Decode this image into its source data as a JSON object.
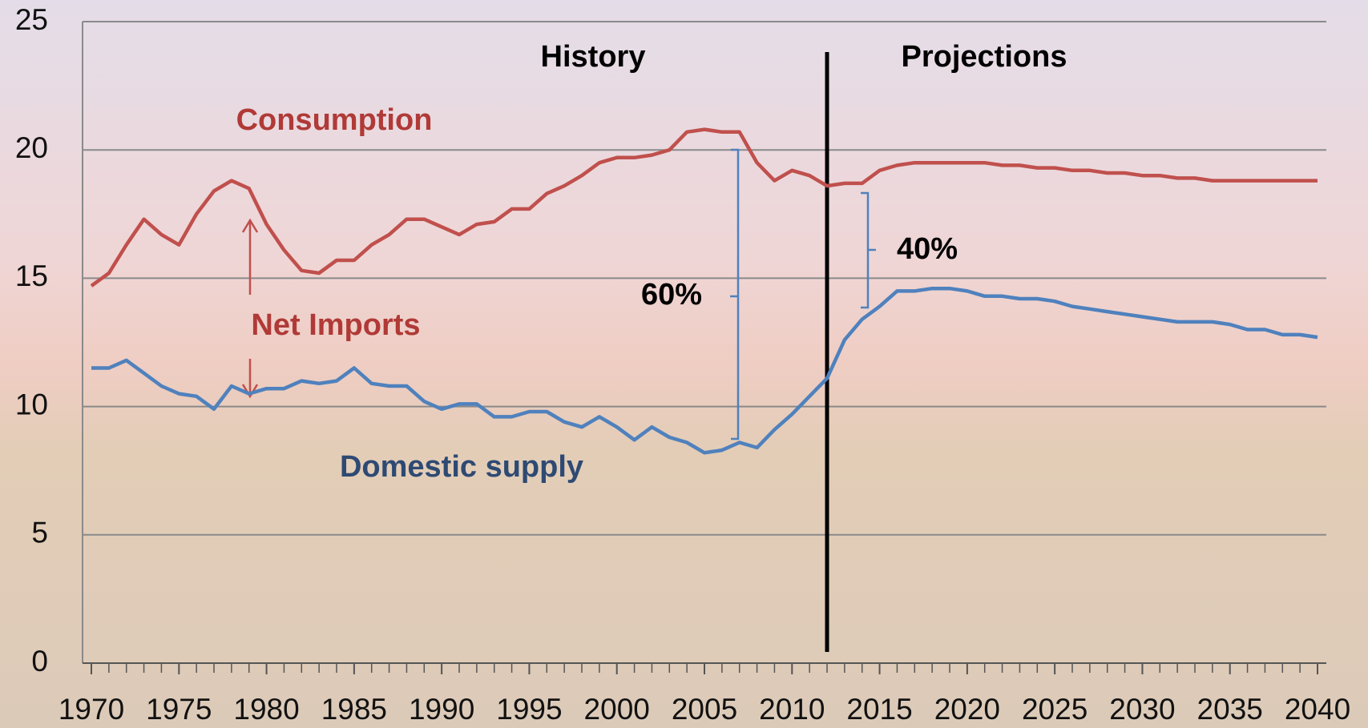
{
  "chart_data": {
    "type": "line",
    "x": [
      1970,
      1971,
      1972,
      1973,
      1974,
      1975,
      1976,
      1977,
      1978,
      1979,
      1980,
      1981,
      1982,
      1983,
      1984,
      1985,
      1986,
      1987,
      1988,
      1989,
      1990,
      1991,
      1992,
      1993,
      1994,
      1995,
      1996,
      1997,
      1998,
      1999,
      2000,
      2001,
      2002,
      2003,
      2004,
      2005,
      2006,
      2007,
      2008,
      2009,
      2010,
      2011,
      2012,
      2013,
      2014,
      2015,
      2016,
      2017,
      2018,
      2019,
      2020,
      2021,
      2022,
      2023,
      2024,
      2025,
      2026,
      2027,
      2028,
      2029,
      2030,
      2031,
      2032,
      2033,
      2034,
      2035,
      2036,
      2037,
      2038,
      2039,
      2040
    ],
    "series": [
      {
        "name": "Consumption",
        "color": "#c0504d",
        "values": [
          14.7,
          15.2,
          16.3,
          17.3,
          16.7,
          16.3,
          17.5,
          18.4,
          18.8,
          18.5,
          17.1,
          16.1,
          15.3,
          15.2,
          15.7,
          15.7,
          16.3,
          16.7,
          17.3,
          17.3,
          17.0,
          16.7,
          17.1,
          17.2,
          17.7,
          17.7,
          18.3,
          18.6,
          19.0,
          19.5,
          19.7,
          19.7,
          19.8,
          20.0,
          20.7,
          20.8,
          20.7,
          20.7,
          19.5,
          18.8,
          19.2,
          19.0,
          18.6,
          18.7,
          18.7,
          19.2,
          19.4,
          19.5,
          19.5,
          19.5,
          19.5,
          19.5,
          19.4,
          19.4,
          19.3,
          19.3,
          19.2,
          19.2,
          19.1,
          19.1,
          19.0,
          19.0,
          18.9,
          18.9,
          18.8,
          18.8,
          18.8,
          18.8,
          18.8,
          18.8,
          18.8
        ]
      },
      {
        "name": "Domestic supply",
        "color": "#4f81bd",
        "values": [
          11.5,
          11.5,
          11.8,
          11.3,
          10.8,
          10.5,
          10.4,
          9.9,
          10.8,
          10.5,
          10.7,
          10.7,
          11.0,
          10.9,
          11.0,
          11.5,
          10.9,
          10.8,
          10.8,
          10.2,
          9.9,
          10.1,
          10.1,
          9.6,
          9.6,
          9.8,
          9.8,
          9.4,
          9.2,
          9.6,
          9.2,
          8.7,
          9.2,
          8.8,
          8.6,
          8.2,
          8.3,
          8.6,
          8.4,
          9.1,
          9.7,
          10.4,
          11.1,
          12.6,
          13.4,
          13.9,
          14.5,
          14.5,
          14.6,
          14.6,
          14.5,
          14.3,
          14.3,
          14.2,
          14.2,
          14.1,
          13.9,
          13.8,
          13.7,
          13.6,
          13.5,
          13.4,
          13.3,
          13.3,
          13.3,
          13.2,
          13.0,
          13.0,
          12.8,
          12.8,
          12.7
        ]
      }
    ],
    "xlim": [
      1969.5,
      2040.5
    ],
    "xticks": [
      1970,
      1975,
      1980,
      1985,
      1990,
      1995,
      2000,
      2005,
      2010,
      2015,
      2020,
      2025,
      2030,
      2035,
      2040
    ],
    "ylim": [
      0,
      25
    ],
    "yticks": [
      0,
      5,
      10,
      15,
      20,
      25
    ],
    "grid": true,
    "annotations": {
      "history": "History",
      "projections": "Projections",
      "net_imports": "Net Imports",
      "share_history": "60%",
      "share_projection": "40%"
    }
  }
}
